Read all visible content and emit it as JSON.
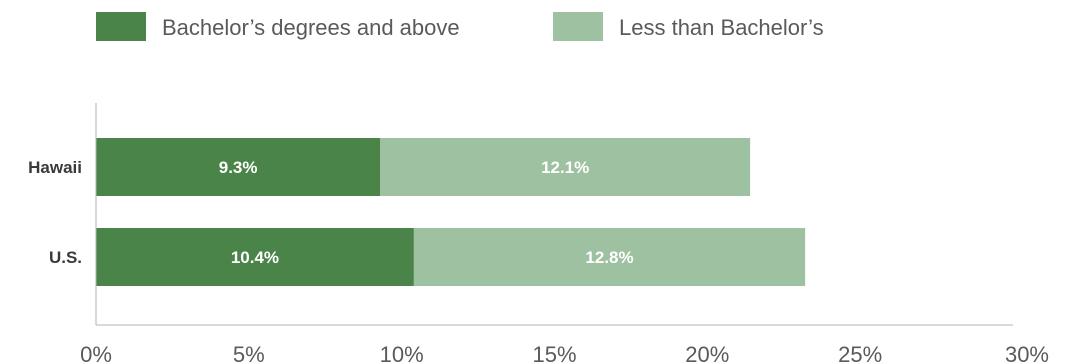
{
  "chart_data": {
    "type": "bar",
    "orientation": "horizontal",
    "stacked": true,
    "categories": [
      "Hawaii",
      "U.S."
    ],
    "series": [
      {
        "name": "Bachelor’s degrees and above",
        "values": [
          9.3,
          10.4
        ],
        "labels": [
          "9.3%",
          "10.4%"
        ],
        "color": "#4a8449"
      },
      {
        "name": "Less than Bachelor’s",
        "values": [
          12.1,
          12.8
        ],
        "labels": [
          "12.1%",
          "12.8%"
        ],
        "color": "#9ec2a1"
      }
    ],
    "xlim": [
      0,
      30
    ],
    "xticks": [
      0,
      5,
      10,
      15,
      20,
      25,
      30
    ],
    "xtick_labels": [
      "0%",
      "5%",
      "10%",
      "15%",
      "20%",
      "25%",
      "30%"
    ],
    "legend_position": "top-left",
    "grid": false,
    "title": "",
    "xlabel": "",
    "ylabel": ""
  }
}
